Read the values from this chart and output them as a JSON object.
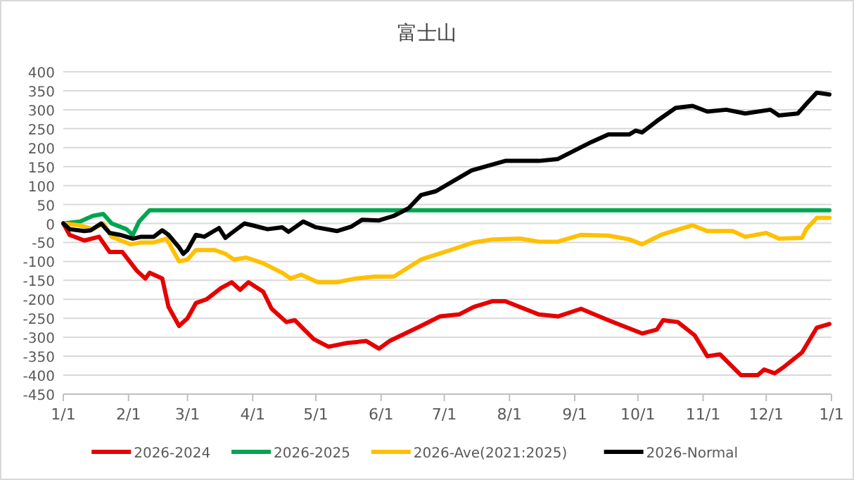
{
  "chart_data": {
    "type": "line",
    "title": "富士山",
    "xlim": [
      "2026-01-01",
      "2027-01-01"
    ],
    "xticks": [
      {
        "value": "2026-01-01",
        "label": "1/1"
      },
      {
        "value": "2026-02-01",
        "label": "2/1"
      },
      {
        "value": "2026-03-01",
        "label": "3/1"
      },
      {
        "value": "2026-04-01",
        "label": "4/1"
      },
      {
        "value": "2026-05-01",
        "label": "5/1"
      },
      {
        "value": "2026-06-01",
        "label": "6/1"
      },
      {
        "value": "2026-07-01",
        "label": "7/1"
      },
      {
        "value": "2026-08-01",
        "label": "8/1"
      },
      {
        "value": "2026-09-01",
        "label": "9/1"
      },
      {
        "value": "2026-10-01",
        "label": "10/1"
      },
      {
        "value": "2026-11-01",
        "label": "11/1"
      },
      {
        "value": "2026-12-01",
        "label": "12/1"
      },
      {
        "value": "2027-01-01",
        "label": "1/1"
      }
    ],
    "ylim": [
      -450,
      400
    ],
    "yticks": [
      -450,
      -400,
      -350,
      -300,
      -250,
      -200,
      -150,
      -100,
      -50,
      0,
      50,
      100,
      150,
      200,
      250,
      300,
      350,
      400
    ],
    "grid": "y",
    "legend": "bottom",
    "marker": "none",
    "line_style": "solid",
    "series": [
      {
        "name": "2026-2024",
        "color": "#e60000",
        "x": [
          "2026-01-01",
          "2026-01-04",
          "2026-01-11",
          "2026-01-18",
          "2026-01-23",
          "2026-01-29",
          "2026-02-05",
          "2026-02-09",
          "2026-02-11",
          "2026-02-17",
          "2026-02-20",
          "2026-02-25",
          "2026-03-01",
          "2026-03-05",
          "2026-03-10",
          "2026-03-17",
          "2026-03-22",
          "2026-03-26",
          "2026-03-30",
          "2026-04-06",
          "2026-04-10",
          "2026-04-17",
          "2026-04-21",
          "2026-04-30",
          "2026-05-07",
          "2026-05-16",
          "2026-05-25",
          "2026-05-31",
          "2026-06-05",
          "2026-06-20",
          "2026-06-29",
          "2026-07-08",
          "2026-07-15",
          "2026-07-24",
          "2026-07-30",
          "2026-08-15",
          "2026-08-24",
          "2026-09-04",
          "2026-09-17",
          "2026-10-03",
          "2026-10-10",
          "2026-10-13",
          "2026-10-20",
          "2026-10-28",
          "2026-11-03",
          "2026-11-09",
          "2026-11-19",
          "2026-11-27",
          "2026-11-30",
          "2026-12-05",
          "2026-12-09",
          "2026-12-18",
          "2026-12-25",
          "2026-12-31"
        ],
        "values": [
          0,
          -30,
          -45,
          -35,
          -75,
          -75,
          -125,
          -145,
          -130,
          -145,
          -220,
          -270,
          -250,
          -210,
          -200,
          -170,
          -155,
          -175,
          -155,
          -180,
          -225,
          -260,
          -255,
          -305,
          -325,
          -315,
          -310,
          -330,
          -310,
          -270,
          -245,
          -240,
          -220,
          -205,
          -205,
          -240,
          -245,
          -225,
          -255,
          -290,
          -280,
          -255,
          -260,
          -295,
          -350,
          -345,
          -400,
          -400,
          -385,
          -395,
          -380,
          -340,
          -275,
          -265
        ]
      },
      {
        "name": "2026-2025",
        "color": "#00a550",
        "x": [
          "2026-01-01",
          "2026-01-09",
          "2026-01-15",
          "2026-01-20",
          "2026-01-24",
          "2026-01-31",
          "2026-02-03",
          "2026-02-06",
          "2026-02-11",
          "2026-02-13",
          "2026-12-31"
        ],
        "values": [
          0,
          5,
          20,
          25,
          0,
          -15,
          -30,
          5,
          35,
          35,
          35
        ]
      },
      {
        "name": "2026-Ave(2021:2025)",
        "color": "#ffc000",
        "x": [
          "2026-01-01",
          "2026-01-09",
          "2026-01-15",
          "2026-01-20",
          "2026-01-24",
          "2026-02-02",
          "2026-02-07",
          "2026-02-13",
          "2026-02-19",
          "2026-02-25",
          "2026-03-01",
          "2026-03-05",
          "2026-03-14",
          "2026-03-19",
          "2026-03-23",
          "2026-03-29",
          "2026-04-06",
          "2026-04-15",
          "2026-04-19",
          "2026-04-24",
          "2026-05-02",
          "2026-05-11",
          "2026-05-20",
          "2026-05-29",
          "2026-06-07",
          "2026-06-20",
          "2026-07-04",
          "2026-07-15",
          "2026-07-24",
          "2026-08-06",
          "2026-08-15",
          "2026-08-24",
          "2026-09-04",
          "2026-09-17",
          "2026-09-27",
          "2026-10-03",
          "2026-10-12",
          "2026-10-19",
          "2026-10-27",
          "2026-11-03",
          "2026-11-15",
          "2026-11-21",
          "2026-12-01",
          "2026-12-07",
          "2026-12-18",
          "2026-12-20",
          "2026-12-25",
          "2026-12-31"
        ],
        "values": [
          0,
          -5,
          -15,
          0,
          -35,
          -55,
          -50,
          -50,
          -40,
          -100,
          -95,
          -70,
          -70,
          -80,
          -95,
          -90,
          -105,
          -130,
          -145,
          -135,
          -155,
          -155,
          -145,
          -140,
          -140,
          -95,
          -70,
          -50,
          -42,
          -40,
          -48,
          -48,
          -30,
          -32,
          -42,
          -55,
          -30,
          -18,
          -5,
          -20,
          -20,
          -35,
          -25,
          -40,
          -38,
          -15,
          15,
          15
        ]
      },
      {
        "name": "2026-Normal",
        "color": "#000000",
        "x": [
          "2026-01-01",
          "2026-01-04",
          "2026-01-11",
          "2026-01-14",
          "2026-01-19",
          "2026-01-23",
          "2026-01-28",
          "2026-02-03",
          "2026-02-07",
          "2026-02-13",
          "2026-02-17",
          "2026-02-20",
          "2026-02-25",
          "2026-02-27",
          "2026-03-01",
          "2026-03-05",
          "2026-03-09",
          "2026-03-12",
          "2026-03-16",
          "2026-03-19",
          "2026-03-22",
          "2026-03-28",
          "2026-04-01",
          "2026-04-08",
          "2026-04-15",
          "2026-04-18",
          "2026-04-25",
          "2026-05-01",
          "2026-05-11",
          "2026-05-18",
          "2026-05-23",
          "2026-05-31",
          "2026-06-07",
          "2026-06-14",
          "2026-06-20",
          "2026-06-27",
          "2026-07-14",
          "2026-07-30",
          "2026-08-15",
          "2026-08-24",
          "2026-09-09",
          "2026-09-17",
          "2026-09-27",
          "2026-09-30",
          "2026-10-03",
          "2026-10-10",
          "2026-10-19",
          "2026-10-27",
          "2026-11-03",
          "2026-11-12",
          "2026-11-21",
          "2026-12-03",
          "2026-12-07",
          "2026-12-16",
          "2026-12-20",
          "2026-12-25",
          "2026-12-31"
        ],
        "values": [
          0,
          -15,
          -20,
          -18,
          0,
          -25,
          -30,
          -40,
          -35,
          -35,
          -18,
          -30,
          -63,
          -80,
          -70,
          -30,
          -35,
          -25,
          -12,
          -38,
          -25,
          0,
          -5,
          -15,
          -10,
          -22,
          5,
          -10,
          -20,
          -8,
          10,
          8,
          20,
          40,
          75,
          85,
          140,
          165,
          165,
          170,
          215,
          235,
          235,
          245,
          240,
          270,
          305,
          310,
          295,
          300,
          290,
          300,
          285,
          290,
          315,
          345,
          340
        ]
      }
    ]
  }
}
